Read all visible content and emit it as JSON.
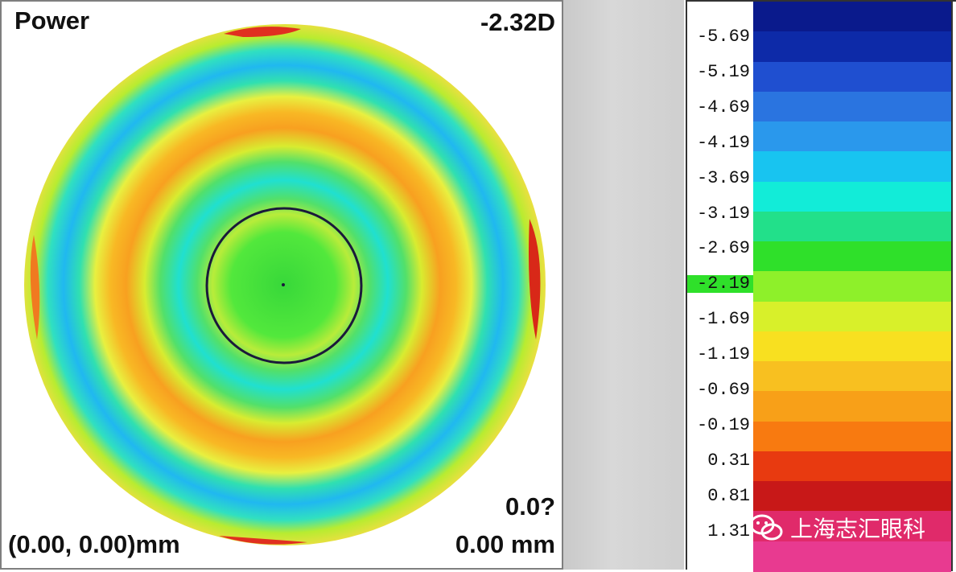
{
  "map": {
    "title": "Power",
    "power_value": "-2.32D",
    "eccentricity": "0.0?",
    "coordinates": "(0.00, 0.00)mm",
    "distance": "0.00 mm"
  },
  "scale": {
    "ticks": [
      "-5.69",
      "-5.19",
      "-4.69",
      "-4.19",
      "-3.69",
      "-3.19",
      "-2.69",
      "-2.19",
      "-1.69",
      "-1.19",
      "-0.69",
      "-0.19",
      "0.31",
      "0.81",
      "1.31"
    ],
    "current_tick": "-2.19",
    "band_colors": [
      "#0a1a8c",
      "#0d2aa8",
      "#1f4fd0",
      "#2a74e0",
      "#2a98ec",
      "#18c4f0",
      "#12ecd8",
      "#22e08a",
      "#2fe02a",
      "#8ef02a",
      "#d8f02a",
      "#f8e020",
      "#f8c020",
      "#f8a018",
      "#f87a10",
      "#e83a10",
      "#c81818",
      "#e02a6a",
      "#e83a90"
    ]
  },
  "watermark": {
    "text": "上海志汇眼科",
    "icon": "wechat-icon"
  },
  "colors": {
    "red": "#e03020",
    "orange": "#f8a020",
    "yellow": "#e8f040",
    "green": "#38e030",
    "cyan": "#20e0d0",
    "blue": "#20a8f0"
  }
}
